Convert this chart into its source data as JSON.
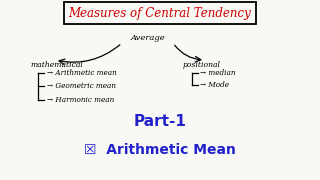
{
  "title": "Measures of Central Tendency",
  "title_color": "#cc0000",
  "bg_color": "#f8f8f5",
  "average_label": "Average",
  "math_label": "mathematical",
  "pos_label": "positional",
  "math_items": [
    "→ Arithmetic mean",
    "→ Geometric mean",
    "→ Harmonic mean"
  ],
  "pos_items": [
    "→ median",
    "→ Mode"
  ],
  "part_label": "Part-1",
  "part_color": "#2222cc",
  "arith_label": "☒  Arithmetic Mean",
  "arith_color": "#2222cc"
}
